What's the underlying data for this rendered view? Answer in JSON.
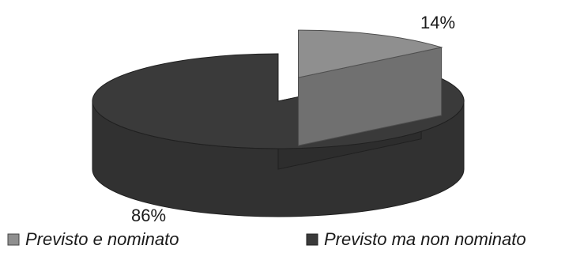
{
  "chart_data": {
    "type": "pie",
    "style": "3d-exploded",
    "categories": [
      "Previsto e nominato",
      "Previsto ma non nominato"
    ],
    "values": [
      14,
      86
    ],
    "value_labels": [
      "14%",
      "86%"
    ],
    "colors": [
      "#8f8f8f",
      "#3a3a3a"
    ],
    "legend_position": "bottom"
  }
}
